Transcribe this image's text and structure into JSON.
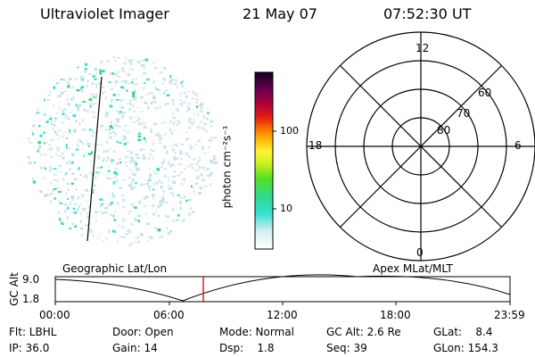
{
  "header": {
    "instrument": "Ultraviolet Imager",
    "date": "21 May 07",
    "time": "07:52:30 UT"
  },
  "colorbar": {
    "unit_label": "photon cm⁻²s⁻¹",
    "ticks": [
      "100",
      "10"
    ]
  },
  "polar_plot": {
    "mlt_labels": {
      "top": "12",
      "left": "18",
      "right": "6",
      "bottom": "0"
    },
    "mlat_labels": [
      "60",
      "70",
      "80"
    ]
  },
  "timeline": {
    "ylabel": "GC Alt",
    "y_ticks": [
      "9.0",
      "1.8"
    ],
    "left_caption": "Geographic Lat/Lon",
    "right_caption": "Apex MLat/MLT",
    "x_ticks": [
      "00:00",
      "06:00",
      "12:00",
      "18:00",
      "23:59"
    ],
    "marker_color": "#cc0000"
  },
  "info": {
    "flt": "Flt: LBHL",
    "ip": "IP: 36.0",
    "door": "Door: Open",
    "gain": "Gain: 14",
    "mode": "Mode: Normal",
    "dsp": "Dsp:    1.8",
    "gcalt": "GC Alt: 2.6 Re",
    "seq": "Seq: 39",
    "glat": "GLat:    8.4",
    "glon": "GLon: 154.3"
  }
}
